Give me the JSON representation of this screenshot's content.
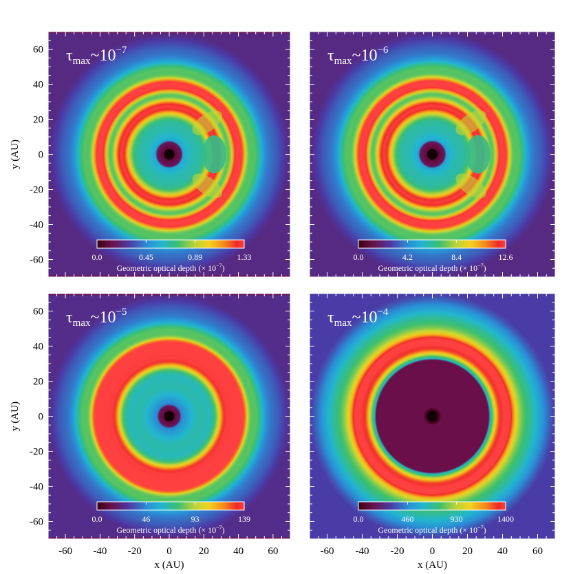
{
  "figure": {
    "xlabel": "x (AU)",
    "ylabel": "y (AU)",
    "colorbar_label": "Geometric optical depth (× 10",
    "colorbar_label_exp": "−7",
    "colorbar_label_close": ")"
  },
  "chart_data": [
    {
      "type": "heatmap",
      "panel": "top-left",
      "title_base": "τ",
      "title_sub": "max",
      "title_tilde": "~10",
      "title_exp": "−7",
      "xlim": [
        -70,
        70
      ],
      "ylim": [
        -70,
        70
      ],
      "xticks": [
        -60,
        -40,
        -20,
        0,
        20,
        40,
        60
      ],
      "yticks": [
        -60,
        -40,
        -20,
        0,
        20,
        40,
        60
      ],
      "xlabel": "",
      "ylabel": "y (AU)",
      "colorbar": {
        "min": 0.0,
        "max": 1.33,
        "ticks": [
          "0.0",
          "0.45",
          "0.89",
          "1.33"
        ]
      },
      "structure": {
        "inner_ring_radius_au": 28,
        "outer_ring_radius_au": 40,
        "peak_tau": 1.33,
        "central_hole_radius_au": 8,
        "clump_side": "right"
      }
    },
    {
      "type": "heatmap",
      "panel": "top-right",
      "title_base": "τ",
      "title_sub": "max",
      "title_tilde": "~10",
      "title_exp": "−6",
      "xlim": [
        -70,
        70
      ],
      "ylim": [
        -70,
        70
      ],
      "xticks": [
        -60,
        -40,
        -20,
        0,
        20,
        40,
        60
      ],
      "yticks": [
        -60,
        -40,
        -20,
        0,
        20,
        40,
        60
      ],
      "xlabel": "",
      "ylabel": "",
      "colorbar": {
        "min": 0.0,
        "max": 12.6,
        "ticks": [
          "0.0",
          "4.2",
          "8.4",
          "12.6"
        ]
      },
      "structure": {
        "inner_ring_radius_au": 28,
        "outer_ring_radius_au": 40,
        "peak_tau": 12.6,
        "central_hole_radius_au": 8,
        "clump_side": "right"
      }
    },
    {
      "type": "heatmap",
      "panel": "bottom-left",
      "title_base": "τ",
      "title_sub": "max",
      "title_tilde": "~10",
      "title_exp": "−5",
      "xlim": [
        -70,
        70
      ],
      "ylim": [
        -70,
        70
      ],
      "xticks": [
        -60,
        -40,
        -20,
        0,
        20,
        40,
        60
      ],
      "yticks": [
        -60,
        -40,
        -20,
        0,
        20,
        40,
        60
      ],
      "xlabel": "x (AU)",
      "ylabel": "y (AU)",
      "colorbar": {
        "min": 0.0,
        "max": 139,
        "ticks": [
          "0.0",
          "46",
          "93",
          "139"
        ]
      },
      "structure": {
        "inner_ring_radius_au": 33,
        "outer_ring_radius_au": 41,
        "peak_tau": 139,
        "central_hole_radius_au": 7,
        "clump_side": "none"
      }
    },
    {
      "type": "heatmap",
      "panel": "bottom-right",
      "title_base": "τ",
      "title_sub": "max",
      "title_tilde": "~10",
      "title_exp": "−4",
      "xlim": [
        -70,
        70
      ],
      "ylim": [
        -70,
        70
      ],
      "xticks": [
        -60,
        -40,
        -20,
        0,
        20,
        40,
        60
      ],
      "yticks": [
        -60,
        -40,
        -20,
        0,
        20,
        40,
        60
      ],
      "xlabel": "x (AU)",
      "ylabel": "",
      "colorbar": {
        "min": 0.0,
        "max": 1400,
        "ticks": [
          "0.0",
          "460",
          "930",
          "1400"
        ]
      },
      "structure": {
        "inner_ring_radius_au": 40,
        "outer_ring_radius_au": 40,
        "peak_tau": 1400,
        "central_hole_radius_au": 35,
        "clump_side": "none"
      }
    }
  ]
}
